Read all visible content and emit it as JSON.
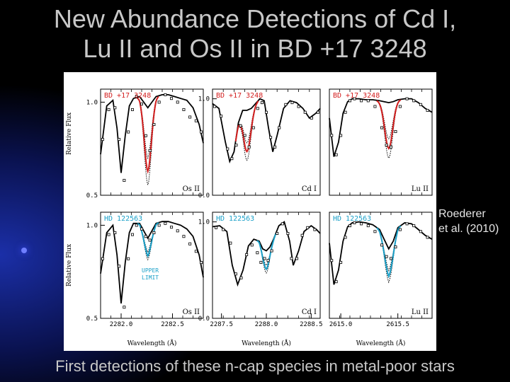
{
  "slide": {
    "title_line1": "New Abundance Detections of Cd I,",
    "title_line2": "Lu II and Os II in BD +17 3248",
    "side_note_line1": "Roederer",
    "side_note_line2": "et al. (2010)",
    "caption": "First detections of these n-cap species in metal-poor stars"
  },
  "colors": {
    "background": "#000000",
    "title_text": "#c8c8c8",
    "bd17_fit": "#d42020",
    "hd122563_fit": "#1aa0c8",
    "panel_label_bd17": "#d42020",
    "panel_label_hd122563": "#1aa0c8",
    "model": "#000000"
  },
  "chart_data": {
    "type": "line",
    "layout": "grid 2x3",
    "ylabel": "Relative Flux",
    "xlabel": "Wavelength (Å)",
    "panels": [
      {
        "id": "bd-os",
        "star": "BD +17 3248",
        "species": "Os II",
        "row": 0,
        "col": 0,
        "xlim": [
          2281.8,
          2282.8
        ],
        "ylim": [
          0.5,
          1.07
        ],
        "yticks": [
          {
            "v": 0.5,
            "l": "0.5"
          },
          {
            "v": 1.0,
            "l": "1.0"
          }
        ],
        "xticks": [],
        "line_center": 2282.26,
        "line_depth": 0.36,
        "model": {
          "x": [
            2281.8,
            2281.86,
            2281.92,
            2281.96,
            2282.0,
            2282.04,
            2282.08,
            2282.12,
            2282.18,
            2282.22,
            2282.26,
            2282.3,
            2282.34,
            2282.4,
            2282.46,
            2282.52,
            2282.58,
            2282.64,
            2282.7,
            2282.76,
            2282.8
          ],
          "y": [
            0.72,
            0.98,
            1.01,
            0.86,
            0.62,
            0.82,
            0.98,
            1.02,
            1.03,
            1.0,
            0.97,
            1.0,
            1.03,
            1.04,
            1.04,
            1.03,
            1.02,
            1.01,
            0.97,
            0.88,
            0.78
          ]
        },
        "observed": {
          "x": [
            2281.82,
            2281.88,
            2281.94,
            2281.98,
            2282.03,
            2282.07,
            2282.11,
            2282.15,
            2282.2,
            2282.24,
            2282.28,
            2282.32,
            2282.37,
            2282.43,
            2282.49,
            2282.55,
            2282.61,
            2282.67,
            2282.73,
            2282.78
          ],
          "y": [
            0.8,
            0.96,
            0.97,
            0.8,
            0.58,
            0.84,
            0.96,
            1.03,
            0.99,
            0.82,
            0.74,
            0.88,
            1.0,
            1.04,
            1.02,
            1.0,
            0.96,
            0.92,
            0.9,
            0.84
          ]
        }
      },
      {
        "id": "bd-cd",
        "star": "BD +17 3248",
        "species": "Cd I",
        "row": 0,
        "col": 1,
        "xlim": [
          2287.7,
          2288.7
        ],
        "ylim": [
          0.0,
          1.1
        ],
        "yticks": [
          {
            "v": 0.0,
            "l": "0.0"
          },
          {
            "v": 1.0,
            "l": "1.0"
          }
        ],
        "xticks": [],
        "line_center": 2288.02,
        "line_depth": 0.45,
        "model": {
          "x": [
            2287.7,
            2287.76,
            2287.82,
            2287.86,
            2287.9,
            2287.94,
            2287.98,
            2288.02,
            2288.06,
            2288.1,
            2288.14,
            2288.18,
            2288.22,
            2288.26,
            2288.3,
            2288.36,
            2288.42,
            2288.48,
            2288.54,
            2288.6,
            2288.66,
            2288.7
          ],
          "y": [
            0.95,
            0.9,
            0.55,
            0.35,
            0.45,
            0.75,
            0.88,
            0.88,
            0.9,
            0.95,
            1.0,
            0.98,
            0.7,
            0.45,
            0.62,
            0.9,
            0.98,
            0.96,
            0.9,
            0.8,
            0.85,
            0.9
          ]
        },
        "observed": {
          "x": [
            2287.72,
            2287.78,
            2287.84,
            2287.88,
            2287.92,
            2287.96,
            2288.0,
            2288.04,
            2288.08,
            2288.12,
            2288.16,
            2288.2,
            2288.24,
            2288.28,
            2288.32,
            2288.38,
            2288.44,
            2288.5,
            2288.56,
            2288.62,
            2288.68
          ],
          "y": [
            0.92,
            0.82,
            0.48,
            0.38,
            0.52,
            0.72,
            0.62,
            0.5,
            0.7,
            0.9,
            0.96,
            0.86,
            0.6,
            0.5,
            0.7,
            0.94,
            0.96,
            0.92,
            0.86,
            0.8,
            0.86
          ]
        }
      },
      {
        "id": "bd-lu",
        "star": "BD +17 3248",
        "species": "Lu II",
        "row": 0,
        "col": 2,
        "xlim": [
          2614.9,
          2615.8
        ],
        "ylim": [
          0.0,
          1.1
        ],
        "yticks": [],
        "xticks": [],
        "line_center": 2615.42,
        "line_depth": 0.5,
        "model": {
          "x": [
            2614.9,
            2614.94,
            2614.98,
            2615.02,
            2615.06,
            2615.1,
            2615.16,
            2615.22,
            2615.28,
            2615.34,
            2615.38,
            2615.42,
            2615.46,
            2615.5,
            2615.56,
            2615.62,
            2615.68,
            2615.74,
            2615.8
          ],
          "y": [
            0.8,
            0.4,
            0.55,
            0.85,
            0.97,
            1.0,
            1.0,
            0.99,
            0.99,
            0.98,
            0.97,
            0.96,
            0.97,
            0.99,
            1.0,
            1.0,
            0.96,
            0.9,
            0.86
          ]
        },
        "observed": {
          "x": [
            2614.92,
            2614.96,
            2615.0,
            2615.04,
            2615.08,
            2615.12,
            2615.18,
            2615.24,
            2615.3,
            2615.36,
            2615.4,
            2615.44,
            2615.48,
            2615.52,
            2615.58,
            2615.64,
            2615.7,
            2615.76
          ],
          "y": [
            0.62,
            0.42,
            0.62,
            0.86,
            0.98,
            1.0,
            0.98,
            0.98,
            0.92,
            0.7,
            0.52,
            0.5,
            0.66,
            0.92,
            1.0,
            0.98,
            0.94,
            0.88
          ]
        }
      },
      {
        "id": "hd-os",
        "star": "HD 122563",
        "species": "Os II",
        "row": 1,
        "col": 0,
        "xlim": [
          2281.8,
          2282.8
        ],
        "ylim": [
          0.5,
          1.07
        ],
        "yticks": [
          {
            "v": 0.5,
            "l": "0.5"
          },
          {
            "v": 1.0,
            "l": "1.0"
          }
        ],
        "xticks": [
          {
            "v": 2282.0,
            "l": "2282.0"
          },
          {
            "v": 2282.5,
            "l": "2282.5"
          }
        ],
        "annotation": [
          "UPPER",
          "LIMIT"
        ],
        "line_center": 2282.26,
        "line_depth": 0.1,
        "model": {
          "x": [
            2281.8,
            2281.86,
            2281.92,
            2281.96,
            2282.0,
            2282.04,
            2282.08,
            2282.12,
            2282.18,
            2282.22,
            2282.26,
            2282.3,
            2282.34,
            2282.4,
            2282.46,
            2282.52,
            2282.58,
            2282.64,
            2282.7,
            2282.76,
            2282.8
          ],
          "y": [
            0.74,
            0.96,
            1.0,
            0.84,
            0.58,
            0.8,
            0.96,
            1.01,
            1.01,
            0.97,
            0.93,
            0.97,
            1.01,
            1.02,
            1.02,
            1.01,
            1.0,
            0.98,
            0.94,
            0.84,
            0.72
          ]
        },
        "observed": {
          "x": [
            2281.82,
            2281.88,
            2281.94,
            2281.98,
            2282.03,
            2282.07,
            2282.11,
            2282.15,
            2282.2,
            2282.24,
            2282.28,
            2282.32,
            2282.37,
            2282.43,
            2282.49,
            2282.55,
            2282.61,
            2282.67,
            2282.73,
            2282.78
          ],
          "y": [
            0.82,
            0.95,
            0.96,
            0.78,
            0.56,
            0.82,
            0.95,
            1.0,
            0.98,
            0.94,
            0.92,
            0.96,
            1.0,
            1.01,
            0.99,
            0.97,
            0.94,
            0.9,
            0.86,
            0.8
          ]
        }
      },
      {
        "id": "hd-cd",
        "star": "HD 122563",
        "species": "Cd I",
        "row": 1,
        "col": 1,
        "xlim": [
          2287.4,
          2288.6
        ],
        "ylim": [
          0.0,
          1.1
        ],
        "yticks": [
          {
            "v": 0.0,
            "l": "0.0"
          },
          {
            "v": 1.0,
            "l": "1.0"
          }
        ],
        "xticks": [
          {
            "v": 2287.5,
            "l": "2287.5"
          },
          {
            "v": 2288.0,
            "l": "2288.0"
          },
          {
            "v": 2288.5,
            "l": "2288.5"
          }
        ],
        "line_center": 2288.0,
        "line_depth": 0.2,
        "model": {
          "x": [
            2287.4,
            2287.48,
            2287.56,
            2287.62,
            2287.68,
            2287.74,
            2287.8,
            2287.86,
            2287.92,
            2287.96,
            2288.0,
            2288.04,
            2288.08,
            2288.14,
            2288.2,
            2288.26,
            2288.3,
            2288.36,
            2288.42,
            2288.5,
            2288.56,
            2288.6
          ],
          "y": [
            0.95,
            0.96,
            0.9,
            0.55,
            0.35,
            0.5,
            0.75,
            0.82,
            0.8,
            0.72,
            0.7,
            0.74,
            0.82,
            0.96,
            1.0,
            0.8,
            0.55,
            0.7,
            0.9,
            0.96,
            0.92,
            0.88
          ]
        },
        "observed": {
          "x": [
            2287.44,
            2287.52,
            2287.6,
            2287.66,
            2287.72,
            2287.78,
            2287.84,
            2287.9,
            2287.94,
            2287.98,
            2288.02,
            2288.06,
            2288.12,
            2288.18,
            2288.24,
            2288.28,
            2288.34,
            2288.4,
            2288.46,
            2288.54
          ],
          "y": [
            0.94,
            0.92,
            0.78,
            0.46,
            0.42,
            0.66,
            0.76,
            0.68,
            0.58,
            0.62,
            0.6,
            0.7,
            0.88,
            0.98,
            0.88,
            0.62,
            0.62,
            0.86,
            0.94,
            0.92
          ]
        }
      },
      {
        "id": "hd-lu",
        "star": "HD 122563",
        "species": "Lu II",
        "row": 1,
        "col": 2,
        "xlim": [
          2614.9,
          2615.8
        ],
        "ylim": [
          0.0,
          1.1
        ],
        "yticks": [],
        "xticks": [
          {
            "v": 2615.0,
            "l": "2615.0"
          },
          {
            "v": 2615.5,
            "l": "2615.5"
          }
        ],
        "line_center": 2615.42,
        "line_depth": 0.3,
        "model": {
          "x": [
            2614.9,
            2614.94,
            2614.98,
            2615.02,
            2615.06,
            2615.1,
            2615.16,
            2615.22,
            2615.28,
            2615.34,
            2615.38,
            2615.42,
            2615.46,
            2615.5,
            2615.56,
            2615.62,
            2615.68,
            2615.74,
            2615.8
          ],
          "y": [
            0.78,
            0.35,
            0.5,
            0.8,
            0.95,
            0.99,
            1.0,
            0.99,
            0.97,
            0.92,
            0.82,
            0.72,
            0.8,
            0.94,
            0.99,
            0.98,
            0.92,
            0.86,
            0.82
          ]
        },
        "observed": {
          "x": [
            2614.92,
            2614.96,
            2615.0,
            2615.04,
            2615.08,
            2615.12,
            2615.18,
            2615.24,
            2615.3,
            2615.36,
            2615.4,
            2615.44,
            2615.48,
            2615.52,
            2615.58,
            2615.64,
            2615.7,
            2615.76
          ],
          "y": [
            0.6,
            0.38,
            0.58,
            0.84,
            0.96,
            0.99,
            0.98,
            0.96,
            0.9,
            0.76,
            0.64,
            0.62,
            0.74,
            0.92,
            0.98,
            0.96,
            0.9,
            0.84
          ]
        }
      }
    ]
  }
}
